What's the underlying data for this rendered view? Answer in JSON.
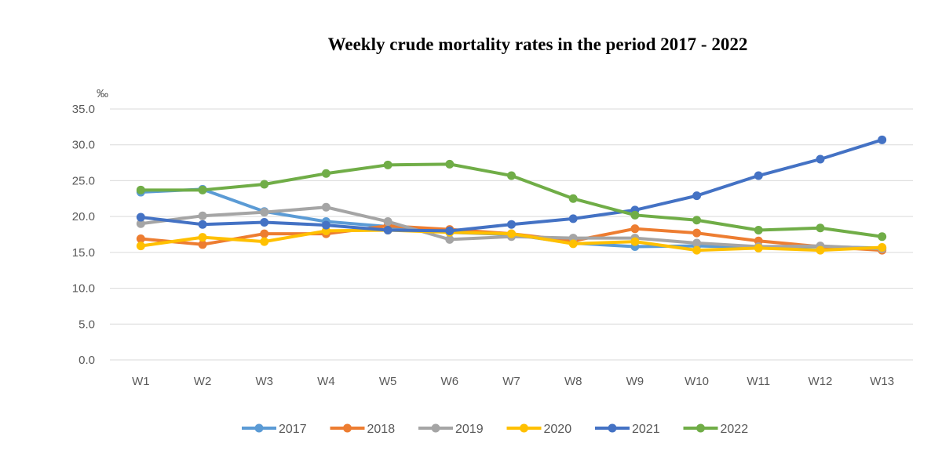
{
  "chart_data": {
    "type": "line",
    "title": "Weekly crude mortality rates in the period 2017 - 2022",
    "ylabel": "‰",
    "xlabel": "",
    "ylim": [
      0,
      35
    ],
    "yticks": [
      "0.0",
      "5.0",
      "10.0",
      "15.0",
      "20.0",
      "25.0",
      "30.0",
      "35.0"
    ],
    "categories": [
      "W1",
      "W2",
      "W3",
      "W4",
      "W5",
      "W6",
      "W7",
      "W8",
      "W9",
      "W10",
      "W11",
      "W12",
      "W13"
    ],
    "grid": true,
    "legend_position": "bottom",
    "series": [
      {
        "name": "2017",
        "color": "#5B9BD5",
        "values": [
          23.4,
          23.8,
          20.7,
          19.3,
          18.6,
          17.8,
          17.5,
          16.3,
          15.8,
          15.9,
          15.7,
          15.8,
          15.6
        ]
      },
      {
        "name": "2018",
        "color": "#ED7D31",
        "values": [
          16.9,
          16.1,
          17.6,
          17.6,
          18.7,
          18.2,
          17.6,
          16.6,
          18.3,
          17.7,
          16.6,
          15.8,
          15.3
        ]
      },
      {
        "name": "2019",
        "color": "#A5A5A5",
        "values": [
          19.0,
          20.1,
          20.6,
          21.3,
          19.3,
          16.8,
          17.2,
          17.0,
          17.0,
          16.3,
          15.8,
          15.9,
          15.5
        ]
      },
      {
        "name": "2020",
        "color": "#FFC000",
        "values": [
          15.9,
          17.1,
          16.5,
          18.0,
          18.1,
          17.8,
          17.6,
          16.2,
          16.5,
          15.3,
          15.6,
          15.3,
          15.7
        ]
      },
      {
        "name": "2021",
        "color": "#4472C4",
        "values": [
          19.9,
          18.9,
          19.2,
          18.8,
          18.1,
          18.0,
          18.9,
          19.7,
          20.9,
          22.9,
          25.7,
          28.0,
          30.7
        ]
      },
      {
        "name": "2022",
        "color": "#70AD47",
        "values": [
          23.7,
          23.7,
          24.5,
          26.0,
          27.2,
          27.3,
          25.7,
          22.5,
          20.2,
          19.5,
          18.1,
          18.4,
          17.2
        ]
      }
    ]
  }
}
